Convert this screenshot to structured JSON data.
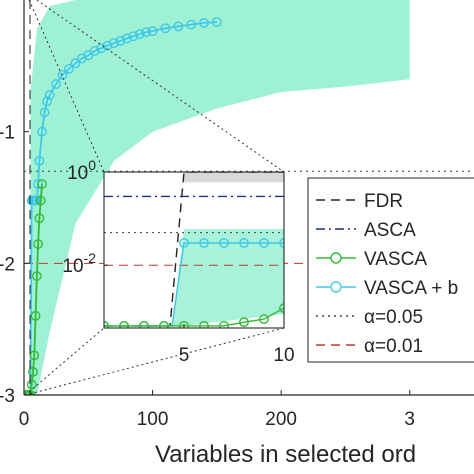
{
  "chart_data": [
    {
      "type": "line",
      "scale": {
        "x": "linear",
        "y": "log10"
      },
      "xlabel": "Variables in selected ord",
      "xticks": [
        "0",
        "100",
        "200",
        "3"
      ],
      "yticks": [
        "-1",
        "-2",
        "-3"
      ],
      "xlim": [
        0,
        350
      ],
      "ylim": [
        0.001,
        1
      ],
      "grid": false,
      "reference_lines": [
        {
          "name": "alpha_0.05",
          "value": 0.05,
          "style": "dotted",
          "color": "#404040"
        },
        {
          "name": "alpha_0.01",
          "value": 0.01,
          "style": "dashed",
          "color": "#c0392b"
        }
      ],
      "series": [
        {
          "name": "VASCA + b",
          "color": "#40c8e8",
          "marker": "circle",
          "x": [
            1,
            2,
            3,
            4,
            5,
            6,
            7,
            8,
            9,
            10,
            11,
            12,
            14,
            16,
            18,
            20,
            25,
            30,
            35,
            40,
            45,
            50,
            55,
            60,
            65,
            70,
            75,
            80,
            85,
            90,
            95,
            100,
            110,
            120,
            130,
            140,
            150
          ],
          "y": [
            0.001,
            0.001,
            0.001,
            0.001,
            0.001,
            0.03,
            0.03,
            0.03,
            0.03,
            0.03,
            0.04,
            0.06,
            0.1,
            0.14,
            0.17,
            0.19,
            0.23,
            0.27,
            0.3,
            0.33,
            0.36,
            0.38,
            0.41,
            0.43,
            0.45,
            0.47,
            0.49,
            0.51,
            0.53,
            0.55,
            0.57,
            0.58,
            0.61,
            0.63,
            0.65,
            0.67,
            0.68
          ]
        },
        {
          "name": "VASCA",
          "color": "#33bb33",
          "marker": "circle",
          "x": [
            1,
            2,
            3,
            4,
            5,
            6,
            7,
            8,
            9,
            10,
            11,
            12,
            13,
            14
          ],
          "y": [
            0.001,
            0.001,
            0.001,
            0.001,
            0.001,
            0.0012,
            0.0015,
            0.002,
            0.004,
            0.008,
            0.014,
            0.022,
            0.03,
            0.04
          ]
        }
      ],
      "band": {
        "color": "#5fe8b8",
        "x": [
          5,
          10,
          20,
          40,
          70,
          100,
          150,
          200,
          250,
          300
        ],
        "upper": [
          0.2,
          0.6,
          0.9,
          1,
          1,
          1,
          1,
          1,
          1,
          1
        ],
        "lower": [
          0.001,
          0.001,
          0.003,
          0.02,
          0.06,
          0.1,
          0.15,
          0.2,
          0.22,
          0.25
        ]
      }
    },
    {
      "type": "line",
      "role": "inset",
      "scale": {
        "x": "linear",
        "y": "log10"
      },
      "xticks": [
        "5",
        "10"
      ],
      "yticks": [
        "10^0",
        "10^-2"
      ],
      "xlim": [
        1,
        10
      ],
      "ylim": [
        0.00045,
        1
      ],
      "reference_lines": [
        {
          "name": "alpha_0.05",
          "value": 0.05,
          "style": "dotted",
          "color": "#404040"
        },
        {
          "name": "alpha_0.01",
          "value": 0.01,
          "style": "dashed",
          "color": "#c0392b"
        }
      ],
      "series": [
        {
          "name": "FDR",
          "color": "#222222",
          "style": "dashed",
          "x": [
            1,
            2,
            3,
            4,
            4.3,
            5,
            10
          ],
          "y": [
            0.0005,
            0.0005,
            0.0005,
            0.0005,
            0.0005,
            1,
            1
          ]
        },
        {
          "name": "ASCA",
          "color": "#1f2e8a",
          "style": "dashdot",
          "x": [
            1,
            10
          ],
          "y": [
            0.3,
            0.3
          ]
        },
        {
          "name": "VASCA + b",
          "color": "#40c8e8",
          "marker": "circle",
          "x": [
            1,
            2,
            3,
            4,
            4.4,
            5,
            6,
            7,
            8,
            9,
            10
          ],
          "y": [
            0.0005,
            0.0005,
            0.0005,
            0.0005,
            0.0005,
            0.03,
            0.03,
            0.03,
            0.03,
            0.03,
            0.03
          ]
        },
        {
          "name": "VASCA",
          "color": "#33bb33",
          "marker": "circle",
          "x": [
            1,
            2,
            3,
            4,
            5,
            6,
            7,
            8,
            9,
            10
          ],
          "y": [
            0.0005,
            0.0005,
            0.0005,
            0.0005,
            0.0005,
            0.0005,
            0.0005,
            0.0006,
            0.0007,
            0.0012
          ]
        }
      ],
      "bands": [
        {
          "color": "#5fe8b8",
          "x": [
            4.4,
            5,
            10
          ],
          "upper": [
            0.0005,
            0.06,
            0.06
          ],
          "lower": [
            0.0005,
            0.0005,
            0.0009
          ]
        },
        {
          "color": "#b8b8b8",
          "x": [
            5,
            10
          ],
          "upper": [
            1,
            1
          ],
          "lower": [
            0.6,
            0.6
          ]
        }
      ]
    }
  ],
  "legend": {
    "placement": "lower-right",
    "entries": [
      {
        "label": "FDR",
        "color": "#222222",
        "style": "dashed",
        "marker": ""
      },
      {
        "label": "ASCA",
        "color": "#1f2e8a",
        "style": "dashdot",
        "marker": ""
      },
      {
        "label": "VASCA",
        "color": "#33bb33",
        "style": "solid",
        "marker": "circle"
      },
      {
        "label": "VASCA + b",
        "color": "#40c8e8",
        "style": "solid",
        "marker": "circle"
      },
      {
        "label": "α=0.05",
        "color": "#404040",
        "style": "dotted",
        "marker": ""
      },
      {
        "label": "α=0.01",
        "color": "#c0392b",
        "style": "dashed",
        "marker": ""
      }
    ]
  }
}
